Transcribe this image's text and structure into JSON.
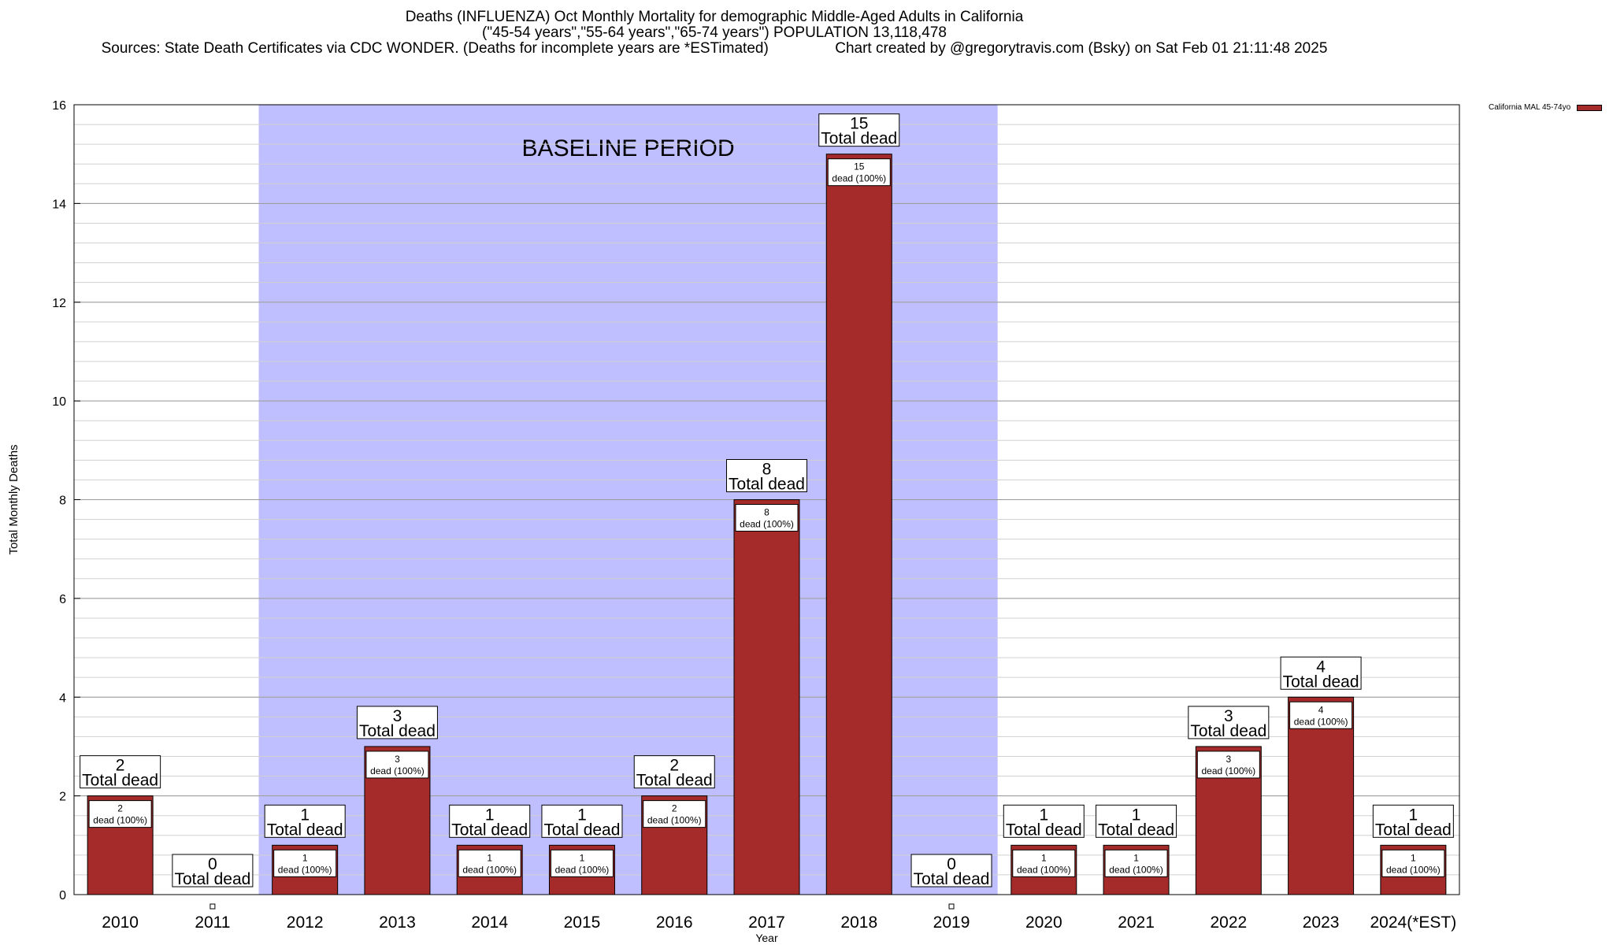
{
  "title_lines": [
    "Deaths (INFLUENZA) Oct Monthly Mortality for demographic Middle-Aged Adults in California",
    "(\"45-54 years\",\"55-64 years\",\"65-74 years\") POPULATION 13,118,478",
    "Sources: State Death Certificates via CDC WONDER. (Deaths for incomplete years are *ESTimated)                Chart created by @gregorytravis.com (Bsky) on Sat Feb 01 21:11:48 2025"
  ],
  "legend": {
    "label": "California MAL 45-74yo",
    "color": "#a52a2a"
  },
  "chart_data": {
    "type": "bar",
    "xlabel": "Year",
    "ylabel": "Total Monthly Deaths",
    "ylim": [
      0,
      16
    ],
    "yticks": [
      0,
      2,
      4,
      6,
      8,
      10,
      12,
      14,
      16
    ],
    "grid": true,
    "legend_position": "top-right",
    "categories": [
      "2010",
      "2011",
      "2012",
      "2013",
      "2014",
      "2015",
      "2016",
      "2017",
      "2018",
      "2019",
      "2020",
      "2021",
      "2022",
      "2023",
      "2024(*EST)"
    ],
    "series": [
      {
        "name": "California MAL 45-74yo",
        "values": [
          2,
          0,
          1,
          3,
          1,
          1,
          2,
          8,
          15,
          0,
          1,
          1,
          3,
          4,
          1
        ]
      }
    ],
    "top_label_suffix": "Total dead",
    "inner_label_suffix": "dead (100%)",
    "baseline": {
      "label": "BASELINE PERIOD",
      "start": "2012",
      "end": "2019",
      "color": "#bfbfff"
    },
    "colors": {
      "bar": "#a52a2a",
      "bar_stroke": "#000000"
    }
  }
}
